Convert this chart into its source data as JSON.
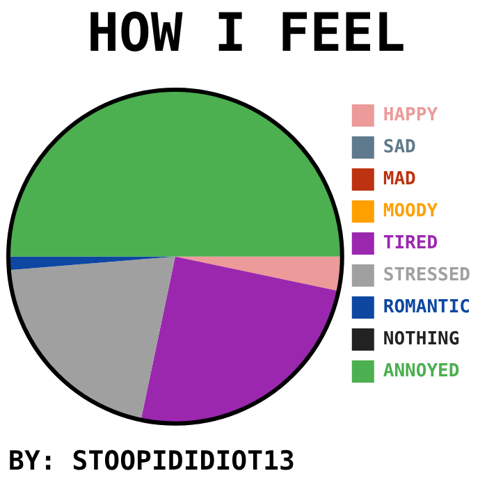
{
  "chart_data": {
    "type": "pie",
    "title": "HOW I FEEL",
    "categories": [
      "HAPPY",
      "SAD",
      "MAD",
      "MOODY",
      "TIRED",
      "STRESSED",
      "ROMANTIC",
      "NOTHING",
      "ANNOYED"
    ],
    "values": [
      3.3,
      0,
      0,
      0,
      25,
      20.4,
      1.3,
      0,
      50
    ],
    "colors": [
      "#ec9a9a",
      "#5f7a8c",
      "#bd3210",
      "#ffa000",
      "#9b27af",
      "#a0a0a0",
      "#0e47a1",
      "#222222",
      "#4caf50"
    ],
    "legend": "right",
    "annotations": [
      "BY: STOOPIDIDIOT13"
    ]
  }
}
